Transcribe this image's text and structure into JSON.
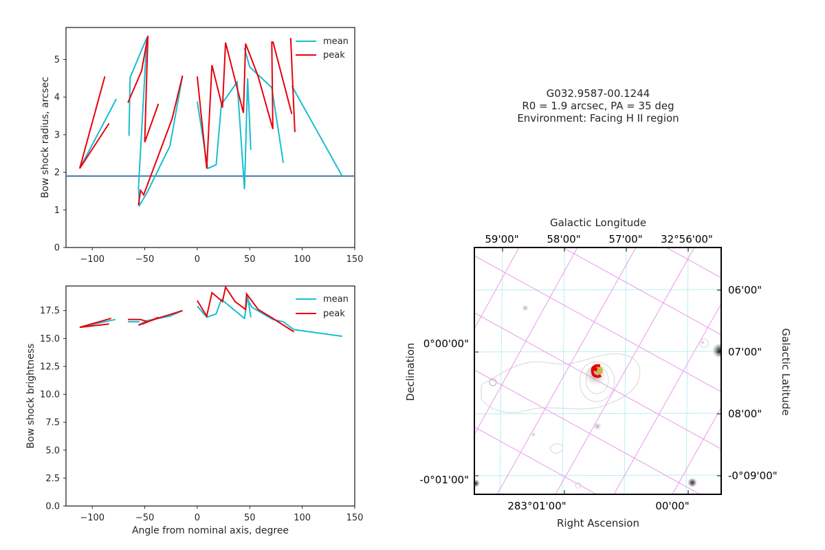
{
  "chart_data": [
    {
      "type": "line",
      "xlabel": "",
      "ylabel": "Bow shock radius, arcsec",
      "xlim": [
        -125,
        150
      ],
      "ylim": [
        0,
        5.85
      ],
      "xticks": [
        "−100",
        "−50",
        "0",
        "50",
        "100",
        "150"
      ],
      "yticks": [
        "0",
        "1",
        "2",
        "3",
        "4",
        "5"
      ],
      "grid": false,
      "legend": "top-right",
      "hline": 1.9,
      "colors": {
        "mean": "#17becf",
        "peak": "#e8000b",
        "hline": "#4c72b0"
      },
      "series": [
        {
          "name": "mean",
          "x": [
            -112,
            -77,
            null,
            -65,
            -64,
            -48,
            -56,
            -55,
            -48,
            -26,
            -14,
            null,
            0,
            10,
            18,
            23,
            38,
            45,
            48,
            51,
            null,
            45,
            50,
            71,
            82,
            null,
            90,
            138
          ],
          "y": [
            2.1,
            3.95,
            null,
            2.97,
            4.52,
            5.58,
            1.58,
            1.12,
            1.45,
            2.7,
            4.57,
            null,
            3.88,
            2.1,
            2.2,
            3.8,
            4.4,
            1.55,
            4.5,
            2.6,
            null,
            5.3,
            4.8,
            4.25,
            2.25,
            null,
            4.3,
            1.9
          ]
        },
        {
          "name": "peak",
          "x": [
            -112,
            -88,
            null,
            -112,
            -84,
            null,
            -66,
            -53,
            -47,
            -50,
            -37,
            null,
            -56,
            -54,
            -51,
            -24,
            -14,
            null,
            0,
            9,
            14,
            24,
            27,
            44,
            46,
            58,
            72,
            71,
            null,
            72,
            90,
            null,
            89,
            93
          ],
          "y": [
            2.1,
            4.55,
            null,
            2.1,
            3.3,
            null,
            3.85,
            4.7,
            5.63,
            2.8,
            3.82,
            null,
            1.12,
            1.52,
            1.4,
            3.42,
            4.57,
            null,
            4.55,
            2.1,
            4.85,
            3.72,
            5.45,
            3.58,
            5.42,
            4.55,
            3.15,
            5.48,
            null,
            5.48,
            3.55,
            null,
            5.57,
            3.07
          ]
        }
      ]
    },
    {
      "type": "line",
      "xlabel": "Angle from nominal axis, degree",
      "ylabel": "Bow shock brightness",
      "xlim": [
        -125,
        150
      ],
      "ylim": [
        0,
        19.7
      ],
      "xticks": [
        "−100",
        "−50",
        "0",
        "50",
        "100",
        "150"
      ],
      "yticks": [
        "0.0",
        "2.5",
        "5.0",
        "7.5",
        "10.0",
        "12.5",
        "15.0",
        "17.5"
      ],
      "grid": false,
      "legend": "top-right",
      "colors": {
        "mean": "#17becf",
        "peak": "#e8000b"
      },
      "series": [
        {
          "name": "mean",
          "x": [
            -112,
            -78,
            null,
            -66,
            -55,
            null,
            -56,
            -48,
            -26,
            -14,
            null,
            0,
            9,
            18,
            23,
            45,
            48,
            51,
            null,
            48,
            52,
            72,
            82,
            92,
            138
          ],
          "y": [
            16.0,
            16.7,
            null,
            16.5,
            16.5,
            null,
            16.2,
            16.6,
            17.0,
            17.5,
            null,
            17.9,
            16.9,
            17.2,
            18.5,
            16.8,
            18.8,
            16.9,
            null,
            18.5,
            17.8,
            16.7,
            16.5,
            15.8,
            15.2
          ]
        },
        {
          "name": "peak",
          "x": [
            -112,
            -82,
            null,
            -112,
            -84,
            null,
            -66,
            -54,
            -47,
            -52,
            -37,
            null,
            -56,
            -38,
            -24,
            -14,
            null,
            0,
            9,
            14,
            24,
            27,
            36,
            46,
            47,
            58,
            72,
            92
          ],
          "y": [
            16.0,
            16.8,
            null,
            16.0,
            16.3,
            null,
            16.7,
            16.7,
            16.5,
            16.3,
            16.9,
            null,
            16.2,
            16.8,
            17.2,
            17.5,
            null,
            18.4,
            17.0,
            19.1,
            18.3,
            19.6,
            18.3,
            17.6,
            19.0,
            17.6,
            16.8,
            15.6
          ]
        }
      ]
    },
    {
      "type": "table",
      "info": {
        "object": "G032.9587-00.1244",
        "params": "R0 = 1.9 arcsec, PA = 35 deg",
        "environment": "Environment: Facing H II region"
      },
      "xlabel": "Right Ascension",
      "ylabel": "Declination",
      "top_label": "Galactic Longitude",
      "right_label": "Galactic Latitude",
      "ra_ticks": [
        "283°01'00\"",
        "00'00\""
      ],
      "dec_ticks": [
        "0°00'00\"",
        "-0°01'00\""
      ],
      "glon_ticks": [
        "59'00\"",
        "58'00\"",
        "57'00\"",
        "32°56'00\""
      ],
      "glat_ticks": [
        "06'00\"",
        "07'00\"",
        "08'00\"",
        "-0°09'00\""
      ],
      "grid": true,
      "colors": {
        "eq_grid": "#b8eef0",
        "gal_grid": "#e99ae9",
        "marker": "#e8000b",
        "marker_core": "#c9b84a"
      }
    }
  ]
}
